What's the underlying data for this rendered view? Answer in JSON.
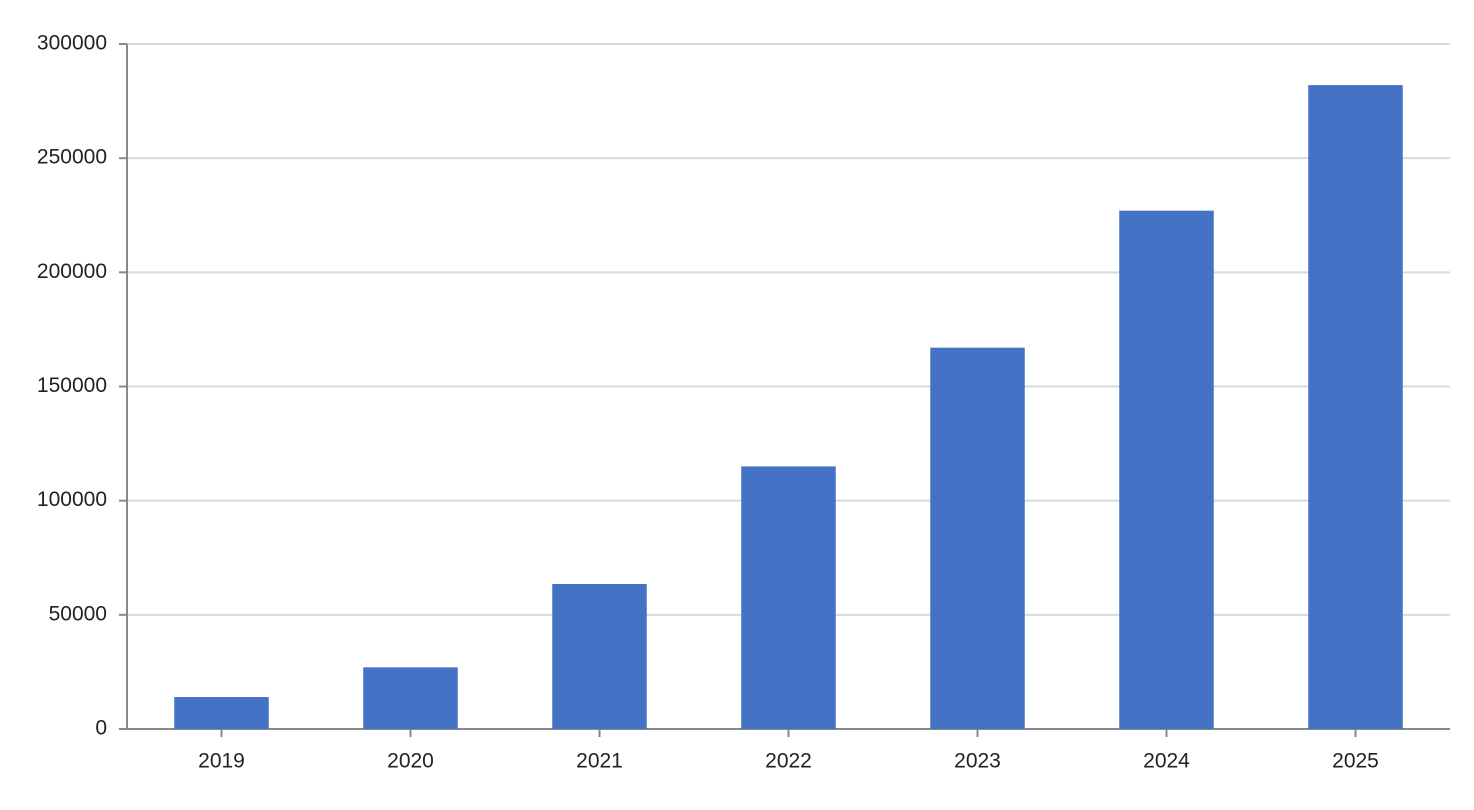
{
  "chart_data": {
    "type": "bar",
    "categories": [
      "2019",
      "2020",
      "2021",
      "2022",
      "2023",
      "2024",
      "2025"
    ],
    "values": [
      14000,
      27000,
      63500,
      115000,
      167000,
      227000,
      282000
    ],
    "color": "#4472c4",
    "ylim": [
      0,
      300000
    ],
    "yticks": [
      0,
      50000,
      100000,
      150000,
      200000,
      250000,
      300000
    ],
    "grid": true
  }
}
